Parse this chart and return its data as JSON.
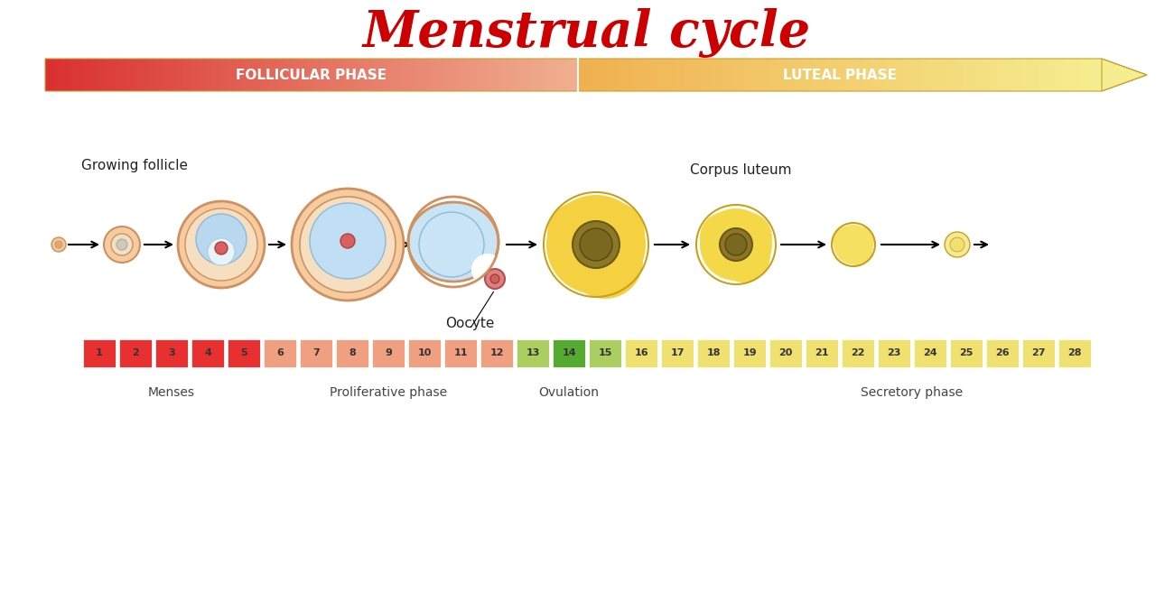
{
  "title": "Menstrual cycle",
  "title_color": "#cc0000",
  "title_fontsize": 40,
  "phase_bar": {
    "follicular_label": "FOLLICULAR PHASE",
    "luteal_label": "LUTEAL PHASE"
  },
  "day_colors": {
    "1": "#e83030",
    "2": "#e83030",
    "3": "#e83030",
    "4": "#e83030",
    "5": "#e83030",
    "6": "#f0a080",
    "7": "#f0a080",
    "8": "#f0a080",
    "9": "#f0a080",
    "10": "#f0a080",
    "11": "#f0a080",
    "12": "#f0a080",
    "13": "#aacf60",
    "14": "#55aa30",
    "15": "#aacf60",
    "16": "#f0e070",
    "17": "#f0e070",
    "18": "#f0e070",
    "19": "#f0e070",
    "20": "#f0e070",
    "21": "#f0e070",
    "22": "#f0e070",
    "23": "#f0e070",
    "24": "#f0e070",
    "25": "#f0e070",
    "26": "#f0e070",
    "27": "#f0e070",
    "28": "#f0e070"
  },
  "oocyte_label": "Oocyte",
  "growing_follicle_label": "Growing follicle",
  "corpus_luteum_label": "Corpus luteum",
  "menses_label": "Menses",
  "prolif_label": "Proliferative phase",
  "ovul_label": "Ovulation",
  "secret_label": "Secretory phase"
}
